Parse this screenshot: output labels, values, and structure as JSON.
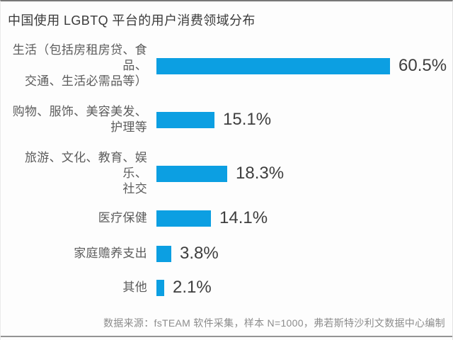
{
  "title": "中国使用 LGBTQ 平台的用户消费领域分布",
  "source_note": "数据来源：fsTEAM 软件采集，样本 N=1000，弗若斯特沙利文数据中心编制",
  "colors": {
    "bar": "#0c9fe2",
    "title_text": "#3a3a3a",
    "label_text": "#5c5c5c",
    "value_text": "#3e3e3e",
    "source_text": "#8c8c8c"
  },
  "chart_data": {
    "type": "bar",
    "orientation": "horizontal",
    "title": "中国使用 LGBTQ 平台的用户消费领域分布",
    "categories": [
      "生活（包括房租房贷、食品、交通、生活必需品等）",
      "购物、服饰、美容美发、护理等",
      "旅游、文化、教育、娱乐、社交",
      "医疗保健",
      "家庭赡养支出",
      "其他"
    ],
    "categories_lines": [
      [
        "生活（包括房租房贷、食品、",
        "交通、生活必需品等）"
      ],
      [
        "购物、服饰、美容美发、",
        "护理等"
      ],
      [
        "旅游、文化、教育、娱乐、",
        "社交"
      ],
      [
        "医疗保健"
      ],
      [
        "家庭赡养支出"
      ],
      [
        "其他"
      ]
    ],
    "values": [
      60.5,
      15.1,
      18.3,
      14.1,
      3.8,
      2.1
    ],
    "value_labels": [
      "60.5%",
      "15.1%",
      "18.3%",
      "14.1%",
      "3.8%",
      "2.1%"
    ],
    "xlabel": "",
    "ylabel": "",
    "xlim": [
      0,
      65
    ],
    "grid": false,
    "legend": false,
    "value_labels_position": "right-of-bar"
  }
}
